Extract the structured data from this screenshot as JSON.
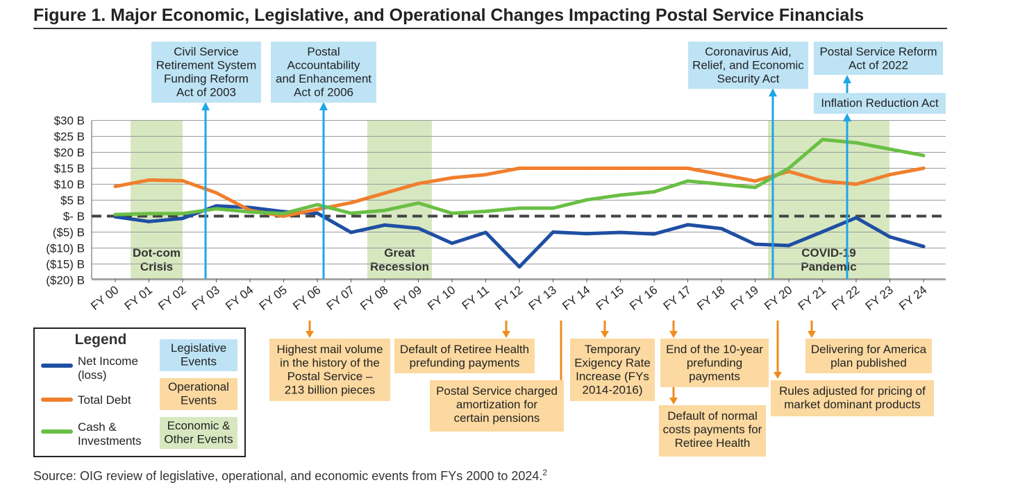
{
  "title": "Figure 1. Major Economic, Legislative, and Operational Changes Impacting Postal Service Financials",
  "source": {
    "text": "Source: OIG review of legislative, operational, and economic events from FYs 2000 to 2024.",
    "footnote": "2"
  },
  "colors": {
    "net_income": "#1f4fa3",
    "total_debt": "#f07f2d",
    "cash": "#6abf45",
    "legislative_box": "#bde3f5",
    "operational_box": "#fcd9a0",
    "economic_box": "#d7e8c0",
    "legislative_arrow": "#1fa6e8",
    "operational_arrow": "#ef8c1e"
  },
  "chart_data": {
    "type": "line",
    "title": "Figure 1. Major Economic, Legislative, and Operational Changes Impacting Postal Service Financials",
    "categories": [
      "FY 00",
      "FY 01",
      "FY 02",
      "FY 03",
      "FY 04",
      "FY 05",
      "FY 06",
      "FY 07",
      "FY 08",
      "FY 09",
      "FY 10",
      "FY 11",
      "FY 12",
      "FY 13",
      "FY 14",
      "FY 15",
      "FY 16",
      "FY 17",
      "FY 18",
      "FY 19",
      "FY 20",
      "FY 21",
      "FY 22",
      "FY 23",
      "FY 24"
    ],
    "ylim": [
      -20,
      30
    ],
    "yticks": [
      30,
      25,
      20,
      15,
      10,
      5,
      0,
      -5,
      -10,
      -15,
      -20
    ],
    "ytick_labels": [
      "$30 B",
      "$25 B",
      "$20 B",
      "$15 B",
      "$10 B",
      "$5 B",
      "$- B",
      "($5) B",
      "($10) B",
      "($15) B",
      "($20) B"
    ],
    "grid": true,
    "series": [
      {
        "name": "Net Income (loss)",
        "color": "#1f4fa3",
        "values": [
          -0.2,
          -1.7,
          -0.7,
          3.2,
          2.7,
          1.4,
          0.9,
          -5.1,
          -2.8,
          -3.8,
          -8.5,
          -5.1,
          -15.9,
          -5.0,
          -5.5,
          -5.1,
          -5.6,
          -2.7,
          -3.9,
          -8.8,
          -9.2,
          -4.9,
          -0.5,
          -6.5,
          -9.5
        ]
      },
      {
        "name": "Total Debt",
        "color": "#f07f2d",
        "values": [
          9.3,
          11.3,
          11.1,
          7.3,
          1.8,
          0.0,
          2.1,
          4.2,
          7.2,
          10.2,
          12.0,
          13.0,
          15.0,
          15.0,
          15.0,
          15.0,
          15.0,
          15.0,
          13.0,
          11.0,
          14.0,
          11.0,
          10.0,
          13.0,
          15.0
        ]
      },
      {
        "name": "Cash & Investments",
        "color": "#6abf45",
        "values": [
          0.5,
          0.8,
          0.8,
          2.3,
          1.3,
          0.8,
          3.6,
          0.9,
          1.8,
          4.1,
          0.9,
          1.5,
          2.5,
          2.5,
          5.1,
          6.6,
          7.6,
          11.0,
          10.0,
          9.0,
          15.0,
          24.0,
          23.0,
          21.0,
          19.0
        ]
      }
    ],
    "economic_events": [
      {
        "label": [
          "Dot-com",
          "Crisis"
        ],
        "from": "FY 00",
        "to": "FY 02"
      },
      {
        "label": [
          "Great",
          "Recession"
        ],
        "from": "FY 08",
        "to": "FY 09"
      },
      {
        "label": [
          "COVID-19",
          "Pandemic"
        ],
        "from": "FY 20",
        "to": "FY 23"
      }
    ],
    "legislative_events": [
      {
        "label": [
          "Civil Service",
          "Retirement System",
          "Funding Reform",
          "Act of 2003"
        ],
        "at": "FY 03"
      },
      {
        "label": [
          "Postal",
          "Accountability",
          "and Enhancement",
          "Act of 2006"
        ],
        "at": "FY 06"
      },
      {
        "label": [
          "Coronavirus Aid,",
          "Relief, and Economic",
          "Security Act"
        ],
        "at": "FY 20"
      },
      {
        "label": [
          "Postal Service Reform",
          "Act of 2022"
        ],
        "at": "FY 22"
      },
      {
        "label": [
          "Inflation Reduction Act"
        ],
        "at": "FY 22"
      }
    ],
    "operational_events": [
      {
        "label": [
          "Highest mail volume",
          "in the history of the",
          "Postal Service –",
          "213 billion pieces"
        ],
        "at": "FY 06"
      },
      {
        "label": [
          "Default of Retiree Health",
          "prefunding payments"
        ],
        "at": "FY 12"
      },
      {
        "label": [
          "Postal Service charged",
          "amortization for",
          "certain pensions"
        ],
        "at": "FY 13"
      },
      {
        "label": [
          "Temporary",
          "Exigency Rate",
          "Increase (FYs",
          "2014-2016)"
        ],
        "at": "FY 14"
      },
      {
        "label": [
          "End of the 10-year",
          "prefunding",
          "payments"
        ],
        "at": "FY 17"
      },
      {
        "label": [
          "Default of normal",
          "costs payments for",
          "Retiree Health"
        ],
        "at": "FY 17"
      },
      {
        "label": [
          "Rules adjusted for pricing of",
          "market dominant products"
        ],
        "at": "FY 20"
      },
      {
        "label": [
          "Delivering for America",
          "plan published"
        ],
        "at": "FY 21"
      }
    ]
  },
  "legend": {
    "title": "Legend",
    "lines": [
      {
        "label": [
          "Net Income",
          "(loss)"
        ],
        "color": "#1f4fa3"
      },
      {
        "label": [
          "Total Debt"
        ],
        "color": "#f07f2d"
      },
      {
        "label": [
          "Cash &",
          "Investments"
        ],
        "color": "#6abf45"
      }
    ],
    "events": [
      {
        "label": [
          "Legislative",
          "Events"
        ],
        "color": "#bde3f5"
      },
      {
        "label": [
          "Operational",
          "Events"
        ],
        "color": "#fcd9a0"
      },
      {
        "label": [
          "Economic &",
          "Other Events"
        ],
        "color": "#d7e8c0"
      }
    ]
  }
}
